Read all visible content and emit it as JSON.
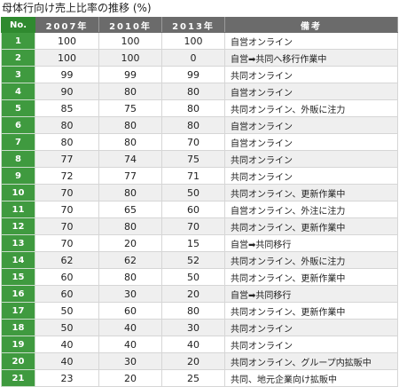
{
  "title": "母体行向け売上比率の推移 (%)",
  "headers": {
    "no": "No.",
    "y2007": "2007年",
    "y2010": "2010年",
    "y2013": "2013年",
    "note": "備考"
  },
  "rows": [
    {
      "no": "1",
      "y2007": "100",
      "y2010": "100",
      "y2013": "100",
      "note": "自営オンライン"
    },
    {
      "no": "2",
      "y2007": "100",
      "y2010": "100",
      "y2013": "0",
      "note": "自営➡共同へ移行作業中"
    },
    {
      "no": "3",
      "y2007": "99",
      "y2010": "99",
      "y2013": "99",
      "note": "共同オンライン"
    },
    {
      "no": "4",
      "y2007": "90",
      "y2010": "80",
      "y2013": "80",
      "note": "自営オンライン"
    },
    {
      "no": "5",
      "y2007": "85",
      "y2010": "75",
      "y2013": "80",
      "note": "共同オンライン、外販に注力"
    },
    {
      "no": "6",
      "y2007": "80",
      "y2010": "80",
      "y2013": "80",
      "note": "自営オンライン"
    },
    {
      "no": "7",
      "y2007": "80",
      "y2010": "80",
      "y2013": "70",
      "note": "自営オンライン"
    },
    {
      "no": "8",
      "y2007": "77",
      "y2010": "74",
      "y2013": "75",
      "note": "共同オンライン"
    },
    {
      "no": "9",
      "y2007": "72",
      "y2010": "77",
      "y2013": "71",
      "note": "共同オンライン"
    },
    {
      "no": "10",
      "y2007": "70",
      "y2010": "80",
      "y2013": "50",
      "note": "共同オンライン、更新作業中"
    },
    {
      "no": "11",
      "y2007": "70",
      "y2010": "65",
      "y2013": "60",
      "note": "自営オンライン、外注に注力"
    },
    {
      "no": "12",
      "y2007": "70",
      "y2010": "80",
      "y2013": "70",
      "note": "共同オンライン、更新作業中"
    },
    {
      "no": "13",
      "y2007": "70",
      "y2010": "20",
      "y2013": "15",
      "note": "自営➡共同移行"
    },
    {
      "no": "14",
      "y2007": "62",
      "y2010": "62",
      "y2013": "52",
      "note": "共同オンライン、外販に注力"
    },
    {
      "no": "15",
      "y2007": "60",
      "y2010": "80",
      "y2013": "50",
      "note": "共同オンライン、更新作業中"
    },
    {
      "no": "16",
      "y2007": "60",
      "y2010": "30",
      "y2013": "20",
      "note": "自営➡共同移行"
    },
    {
      "no": "17",
      "y2007": "50",
      "y2010": "60",
      "y2013": "80",
      "note": "共同オンライン、更新作業中"
    },
    {
      "no": "18",
      "y2007": "50",
      "y2010": "40",
      "y2013": "30",
      "note": "共同オンライン"
    },
    {
      "no": "19",
      "y2007": "40",
      "y2010": "40",
      "y2013": "40",
      "note": "共同オンライン"
    },
    {
      "no": "20",
      "y2007": "40",
      "y2010": "30",
      "y2013": "20",
      "note": "共同オンライン、グループ内拡販中"
    },
    {
      "no": "21",
      "y2007": "23",
      "y2010": "20",
      "y2013": "25",
      "note": "共同、地元企業向け拡販中"
    }
  ]
}
